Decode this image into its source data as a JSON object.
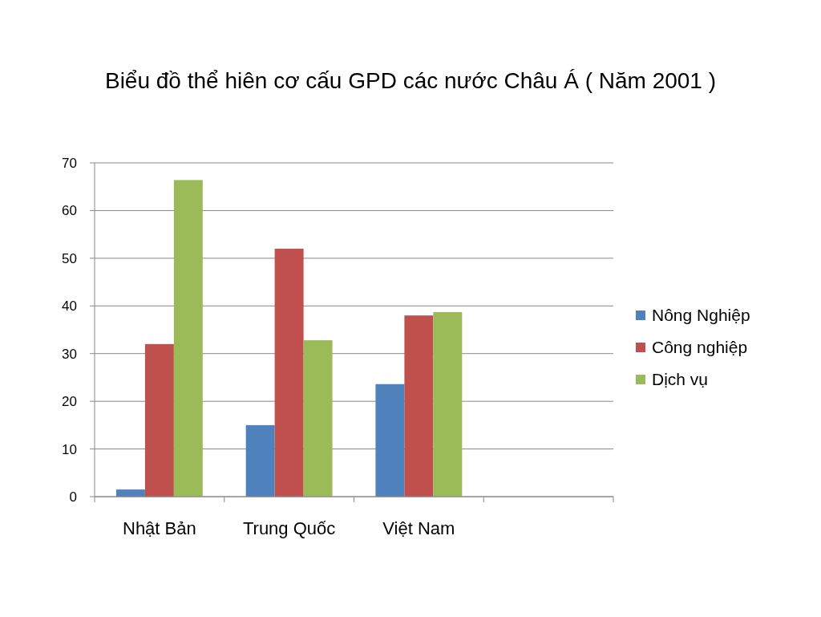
{
  "chart_data": {
    "type": "bar",
    "title": "Biểu đồ thể hiên cơ cấu GPD các nước Châu Á ( Năm 2001 )",
    "categories": [
      "Nhật Bản",
      "Trung Quốc",
      "Việt Nam",
      null
    ],
    "series": [
      {
        "name": "Nông Nghiệp",
        "color": "#4f81bd",
        "values": [
          1.5,
          15,
          23.6,
          null
        ]
      },
      {
        "name": "Công nghiệp",
        "color": "#c0504d",
        "values": [
          32,
          52,
          38,
          null
        ]
      },
      {
        "name": "Dịch vụ",
        "color": "#9bbb59",
        "values": [
          66.4,
          32.8,
          38.7,
          null
        ]
      }
    ],
    "ylim": [
      0,
      70
    ],
    "yticks": [
      0,
      10,
      20,
      30,
      40,
      50,
      60,
      70
    ],
    "grid": "y",
    "legend": "right"
  }
}
